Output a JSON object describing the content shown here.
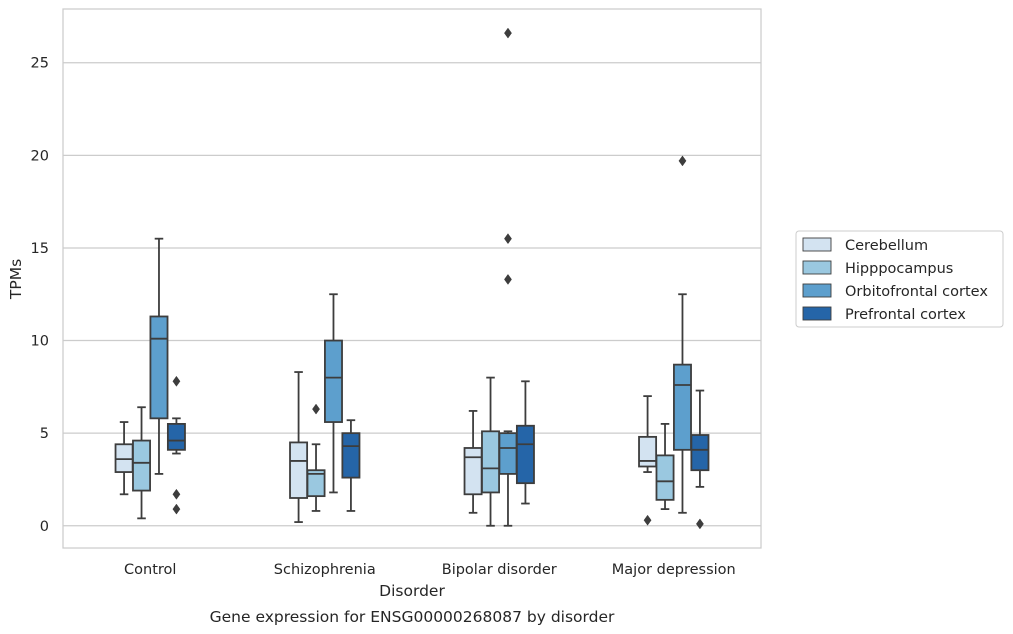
{
  "chart_data": {
    "type": "box",
    "title": "Gene expression for ENSG00000268087 by disorder",
    "xlabel": "Disorder",
    "ylabel": "TPMs",
    "ylim": [
      -1.2,
      27.9
    ],
    "yticks": [
      0,
      5,
      10,
      15,
      20,
      25
    ],
    "grid": "horizontal",
    "legend_position": "right",
    "categories": [
      "Control",
      "Schizophrenia",
      "Bipolar disorder",
      "Major depression"
    ],
    "series": [
      {
        "name": "Cerebellum",
        "color": "#d3e3f1",
        "boxes": [
          {
            "whisker_low": 1.7,
            "q1": 2.9,
            "median": 3.6,
            "q3": 4.4,
            "whisker_high": 5.6,
            "outliers": []
          },
          {
            "whisker_low": 0.2,
            "q1": 1.5,
            "median": 3.5,
            "q3": 4.5,
            "whisker_high": 8.3,
            "outliers": []
          },
          {
            "whisker_low": 0.7,
            "q1": 1.7,
            "median": 3.7,
            "q3": 4.2,
            "whisker_high": 6.2,
            "outliers": []
          },
          {
            "whisker_low": 2.9,
            "q1": 3.2,
            "median": 3.5,
            "q3": 4.8,
            "whisker_high": 7.0,
            "outliers": [
              0.3
            ]
          }
        ]
      },
      {
        "name": "Hipppocampus",
        "color": "#9ac8e0",
        "boxes": [
          {
            "whisker_low": 0.4,
            "q1": 1.9,
            "median": 3.4,
            "q3": 4.6,
            "whisker_high": 6.4,
            "outliers": []
          },
          {
            "whisker_low": 0.8,
            "q1": 1.6,
            "median": 2.8,
            "q3": 3.0,
            "whisker_high": 4.4,
            "outliers": [
              6.3
            ]
          },
          {
            "whisker_low": 0.0,
            "q1": 1.8,
            "median": 3.1,
            "q3": 5.1,
            "whisker_high": 8.0,
            "outliers": []
          },
          {
            "whisker_low": 0.9,
            "q1": 1.4,
            "median": 2.4,
            "q3": 3.8,
            "whisker_high": 5.5,
            "outliers": []
          }
        ]
      },
      {
        "name": "Orbitofrontal cortex",
        "color": "#5d9fcd",
        "boxes": [
          {
            "whisker_low": 2.8,
            "q1": 5.8,
            "median": 10.1,
            "q3": 11.3,
            "whisker_high": 15.5,
            "outliers": []
          },
          {
            "whisker_low": 1.8,
            "q1": 5.6,
            "median": 8.0,
            "q3": 10.0,
            "whisker_high": 12.5,
            "outliers": []
          },
          {
            "whisker_low": 0.0,
            "q1": 2.8,
            "median": 4.2,
            "q3": 5.0,
            "whisker_high": 5.1,
            "outliers": [
              13.3,
              15.5,
              26.6
            ]
          },
          {
            "whisker_low": 0.7,
            "q1": 4.1,
            "median": 7.6,
            "q3": 8.7,
            "whisker_high": 12.5,
            "outliers": [
              19.7
            ]
          }
        ]
      },
      {
        "name": "Prefrontal cortex",
        "color": "#2565a8",
        "boxes": [
          {
            "whisker_low": 3.9,
            "q1": 4.1,
            "median": 4.6,
            "q3": 5.5,
            "whisker_high": 5.8,
            "outliers": [
              7.8,
              1.7,
              0.9
            ]
          },
          {
            "whisker_low": 0.8,
            "q1": 2.6,
            "median": 4.3,
            "q3": 5.0,
            "whisker_high": 5.7,
            "outliers": []
          },
          {
            "whisker_low": 1.2,
            "q1": 2.3,
            "median": 4.4,
            "q3": 5.4,
            "whisker_high": 7.8,
            "outliers": []
          },
          {
            "whisker_low": 2.1,
            "q1": 3.0,
            "median": 4.1,
            "q3": 4.9,
            "whisker_high": 7.3,
            "outliers": [
              0.1
            ]
          }
        ]
      }
    ]
  }
}
